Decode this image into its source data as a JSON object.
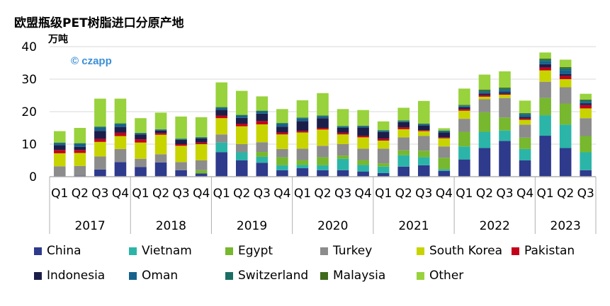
{
  "chart_data": {
    "type": "bar",
    "stacked": true,
    "title": "欧盟瓶级PET树脂进口分原产地",
    "ylabel": "万吨",
    "ylim": [
      0,
      40
    ],
    "yticks": [
      0,
      10,
      20,
      30,
      40
    ],
    "quarters": [
      "Q1",
      "Q2",
      "Q3",
      "Q4",
      "Q1",
      "Q2",
      "Q3",
      "Q4",
      "Q1",
      "Q2",
      "Q3",
      "Q4",
      "Q1",
      "Q2",
      "Q3",
      "Q4",
      "Q1",
      "Q2",
      "Q3",
      "Q4",
      "Q1",
      "Q2",
      "Q3",
      "Q4",
      "Q1",
      "Q2",
      "Q3"
    ],
    "years": [
      {
        "label": "2017",
        "count": 4
      },
      {
        "label": "2018",
        "count": 4
      },
      {
        "label": "2019",
        "count": 4
      },
      {
        "label": "2020",
        "count": 4
      },
      {
        "label": "2021",
        "count": 4
      },
      {
        "label": "2022",
        "count": 4
      },
      {
        "label": "2023",
        "count": 3
      }
    ],
    "series": [
      {
        "name": "China",
        "color": "#2e3a8c",
        "values": [
          0.2,
          0.3,
          2.2,
          4.5,
          3.0,
          4.4,
          2.0,
          1.0,
          7.5,
          5.0,
          4.3,
          2.0,
          2.6,
          2.0,
          2.0,
          1.6,
          1.1,
          3.1,
          3.5,
          1.8,
          5.3,
          8.8,
          11.0,
          5.0,
          12.6,
          8.8,
          2.0
        ]
      },
      {
        "name": "Vietnam",
        "color": "#2bb5a8",
        "values": [
          0,
          0,
          0,
          0,
          0,
          0,
          0,
          0,
          3.0,
          2.5,
          1.8,
          1.5,
          1.0,
          1.5,
          3.5,
          2.0,
          2.0,
          3.5,
          2.5,
          0.5,
          4.0,
          5.0,
          3.2,
          3.5,
          6.3,
          7.2,
          5.5
        ]
      },
      {
        "name": "Egypt",
        "color": "#77b82e",
        "values": [
          0,
          0,
          0,
          0,
          0,
          0,
          0,
          1.0,
          0,
          0,
          1.5,
          2.5,
          1.5,
          2.5,
          1.0,
          1.5,
          1.0,
          1.5,
          2.0,
          3.5,
          4.5,
          6.0,
          4.0,
          3.5,
          5.3,
          6.5,
          5.0
        ]
      },
      {
        "name": "Turkey",
        "color": "#8c8c8c",
        "values": [
          3.0,
          3.0,
          4.0,
          4.0,
          2.5,
          2.5,
          2.5,
          3.0,
          2.5,
          2.5,
          3.0,
          2.5,
          3.5,
          3.5,
          3.5,
          3.5,
          4.5,
          4.0,
          4.5,
          3.5,
          4.0,
          4.0,
          6.0,
          4.0,
          5.0,
          5.0,
          5.5
        ]
      },
      {
        "name": "South Korea",
        "color": "#c8d400",
        "values": [
          4.0,
          4.0,
          4.5,
          4.0,
          5.0,
          6.0,
          5.0,
          5.0,
          5.0,
          5.5,
          5.5,
          4.5,
          5.0,
          5.0,
          3.0,
          3.5,
          2.5,
          2.5,
          1.5,
          2.5,
          2.5,
          0.8,
          1.0,
          1.5,
          3.5,
          2.5,
          3.0
        ]
      },
      {
        "name": "Pakistan",
        "color": "#c4001a",
        "values": [
          1.0,
          0.9,
          0.9,
          1.0,
          1.0,
          0.5,
          0.5,
          0.5,
          0.8,
          0.8,
          1.0,
          0.6,
          0.5,
          0.5,
          0.5,
          0.5,
          0.6,
          0.6,
          0.3,
          0.3,
          0.5,
          0.5,
          0.3,
          0.4,
          0.9,
          1.0,
          1.0
        ]
      },
      {
        "name": "Indonesia",
        "color": "#1c1e4a",
        "values": [
          1.5,
          1.0,
          2.5,
          1.8,
          1.5,
          0.8,
          1.3,
          1.3,
          1.8,
          1.8,
          2.3,
          1.8,
          3.0,
          3.0,
          1.5,
          2.5,
          2.0,
          1.6,
          1.5,
          1.5,
          0.5,
          0.5,
          0.5,
          0.5,
          1.0,
          0.6,
          0.5
        ]
      },
      {
        "name": "Oman",
        "color": "#16628c",
        "values": [
          0.5,
          0.8,
          1.0,
          0.8,
          0.3,
          0.2,
          0.2,
          0.2,
          0.5,
          0.6,
          0.6,
          0.8,
          0.8,
          0.5,
          0.3,
          0.3,
          0.3,
          0.2,
          0.2,
          0.3,
          0.3,
          0.4,
          0.6,
          0.6,
          0.9,
          1.2,
          0.5
        ]
      },
      {
        "name": "Switzerland",
        "color": "#1b6e64",
        "values": [
          0.3,
          0.3,
          0.3,
          0.3,
          0.2,
          0.2,
          0.2,
          0.2,
          0.3,
          0.3,
          0.3,
          0.3,
          0.3,
          0.3,
          0.3,
          0.3,
          0.3,
          0.3,
          0.3,
          0.3,
          0.3,
          0.5,
          0.5,
          0.4,
          0.5,
          0.6,
          0.5
        ]
      },
      {
        "name": "Malaysia",
        "color": "#3f6b1c",
        "values": [
          0,
          0,
          0,
          0,
          0,
          0,
          0,
          0,
          0,
          0,
          0,
          0,
          0,
          0,
          0,
          0,
          0,
          0,
          0,
          0,
          0.2,
          0.3,
          0.3,
          0.2,
          0.3,
          0.3,
          0.2
        ]
      },
      {
        "name": "Other",
        "color": "#98d23c",
        "values": [
          3.5,
          4.7,
          8.6,
          7.6,
          4.5,
          5.1,
          6.8,
          6.1,
          7.6,
          7.4,
          4.4,
          4.3,
          5.3,
          6.9,
          5.2,
          4.8,
          2.7,
          3.9,
          7.0,
          0.7,
          5.0,
          4.6,
          5.0,
          3.8,
          1.9,
          2.3,
          1.8
        ]
      }
    ]
  },
  "watermark": {
    "symbol": "©",
    "brand": "czapp"
  },
  "colors": {
    "axis": "#b0b0b0",
    "grid": "#d9d9d9",
    "watermark": "#3b8fd6"
  }
}
